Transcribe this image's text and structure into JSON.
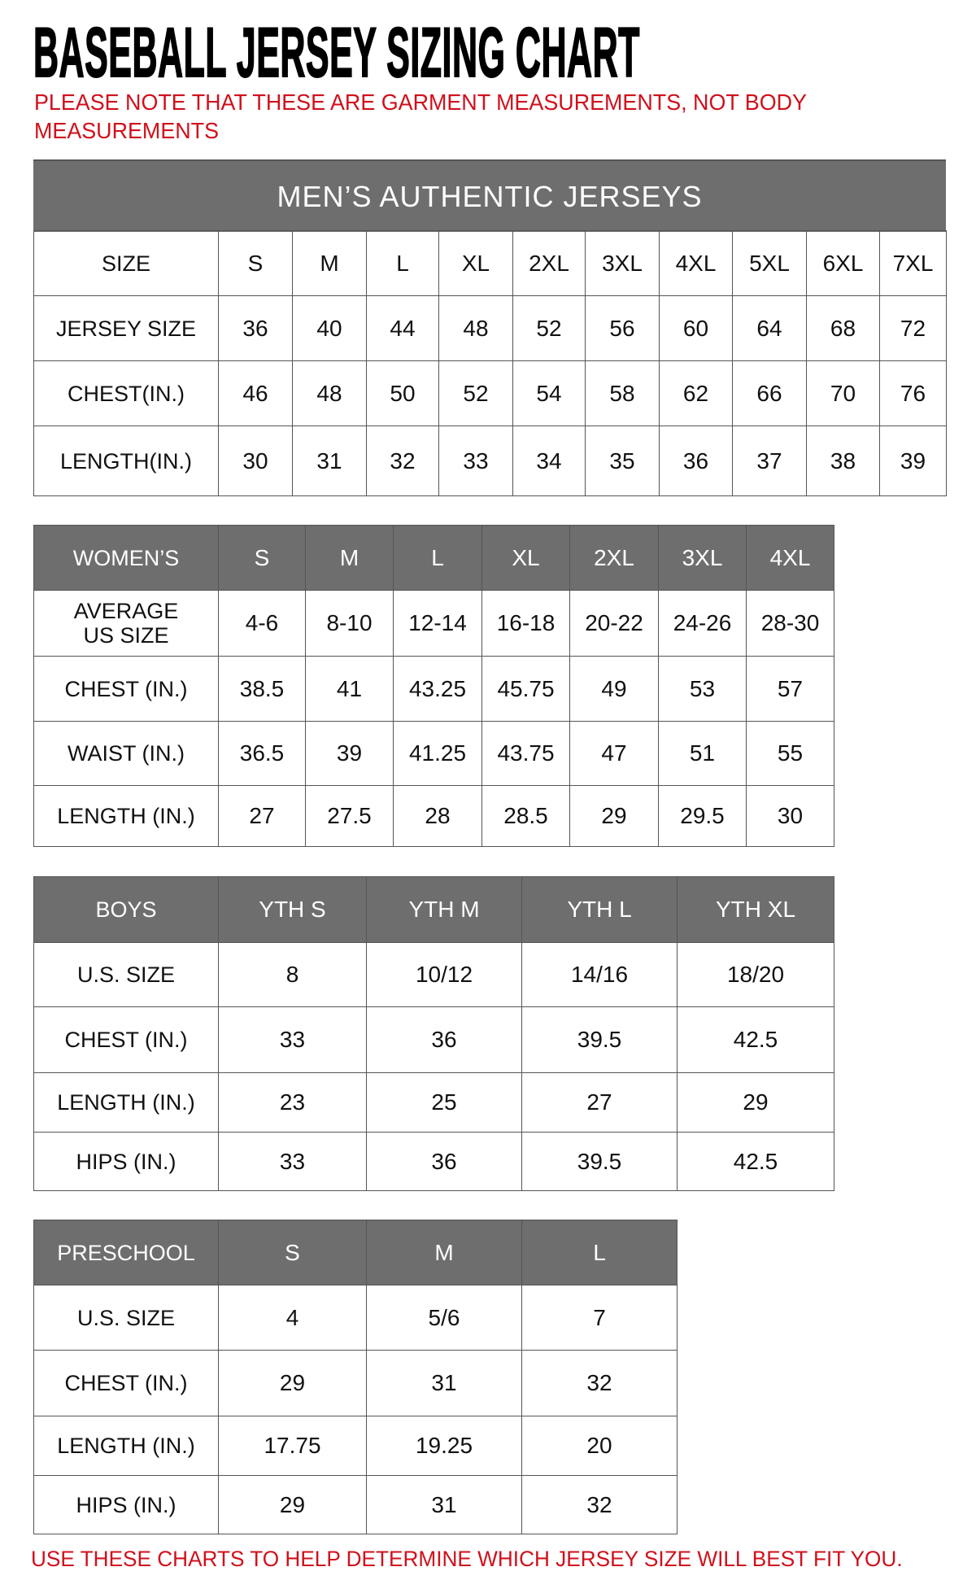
{
  "title": "BASEBALL JERSEY SIZING CHART",
  "note": "PLEASE NOTE THAT THESE ARE GARMENT MEASUREMENTS, NOT BODY MEASUREMENTS",
  "footer": "USE THESE CHARTS TO HELP DETERMINE WHICH JERSEY SIZE WILL BEST FIT YOU.",
  "colors": {
    "header_gray": "#6e6e6e",
    "note_red": "#d0101c"
  },
  "mens": {
    "title": "MEN’S AUTHENTIC JERSEYS",
    "rows": [
      [
        "SIZE",
        "S",
        "M",
        "L",
        "XL",
        "2XL",
        "3XL",
        "4XL",
        "5XL",
        "6XL",
        "7XL"
      ],
      [
        "JERSEY SIZE",
        "36",
        "40",
        "44",
        "48",
        "52",
        "56",
        "60",
        "64",
        "68",
        "72"
      ],
      [
        "CHEST(IN.)",
        "46",
        "48",
        "50",
        "52",
        "54",
        "58",
        "62",
        "66",
        "70",
        "76"
      ],
      [
        "LENGTH(IN.)",
        "30",
        "31",
        "32",
        "33",
        "34",
        "35",
        "36",
        "37",
        "38",
        "39"
      ]
    ]
  },
  "womens": {
    "rows": [
      [
        "WOMEN’S",
        "S",
        "M",
        "L",
        "XL",
        "2XL",
        "3XL",
        "4XL"
      ],
      [
        "AVERAGE\nUS SIZE",
        "4-6",
        "8-10",
        "12-14",
        "16-18",
        "20-22",
        "24-26",
        "28-30"
      ],
      [
        "CHEST (IN.)",
        "38.5",
        "41",
        "43.25",
        "45.75",
        "49",
        "53",
        "57"
      ],
      [
        "WAIST (IN.)",
        "36.5",
        "39",
        "41.25",
        "43.75",
        "47",
        "51",
        "55"
      ],
      [
        "LENGTH (IN.)",
        "27",
        "27.5",
        "28",
        "28.5",
        "29",
        "29.5",
        "30"
      ]
    ]
  },
  "boys": {
    "rows": [
      [
        "BOYS",
        "YTH S",
        "YTH M",
        "YTH L",
        "YTH XL"
      ],
      [
        "U.S. SIZE",
        "8",
        "10/12",
        "14/16",
        "18/20"
      ],
      [
        "CHEST (IN.)",
        "33",
        "36",
        "39.5",
        "42.5"
      ],
      [
        "LENGTH (IN.)",
        "23",
        "25",
        "27",
        "29"
      ],
      [
        "HIPS (IN.)",
        "33",
        "36",
        "39.5",
        "42.5"
      ]
    ]
  },
  "preschool": {
    "rows": [
      [
        "PRESCHOOL",
        "S",
        "M",
        "L"
      ],
      [
        "U.S. SIZE",
        "4",
        "5/6",
        "7"
      ],
      [
        "CHEST (IN.)",
        "29",
        "31",
        "32"
      ],
      [
        "LENGTH (IN.)",
        "17.75",
        "19.25",
        "20"
      ],
      [
        "HIPS (IN.)",
        "29",
        "31",
        "32"
      ]
    ]
  }
}
